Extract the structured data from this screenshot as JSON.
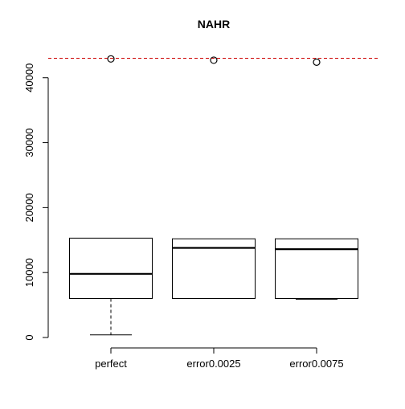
{
  "chart_data": {
    "type": "boxplot",
    "title": "NAHR",
    "xlabel": "",
    "ylabel": "",
    "categories": [
      "perfect",
      "error0.0025",
      "error0.0075"
    ],
    "boxes": [
      {
        "category": "perfect",
        "whisker_low": 400,
        "q1": 6000,
        "median": 9800,
        "q3": 15300,
        "whisker_high": 15300,
        "outliers": [
          42900
        ]
      },
      {
        "category": "error0.0025",
        "whisker_low": 6000,
        "q1": 6000,
        "median": 13800,
        "q3": 15200,
        "whisker_high": 15200,
        "outliers": [
          42700
        ]
      },
      {
        "category": "error0.0075",
        "whisker_low": 5900,
        "q1": 6000,
        "median": 13600,
        "q3": 15200,
        "whisker_high": 15200,
        "outliers": [
          42400
        ]
      }
    ],
    "reference_line": {
      "y": 43000,
      "color": "#cc0000",
      "style": "dashed"
    },
    "y_ticks": [
      0,
      10000,
      20000,
      30000,
      40000
    ],
    "y_tick_labels": [
      "0",
      "10000",
      "20000",
      "30000",
      "40000"
    ],
    "ylim": [
      -400,
      44600
    ],
    "grid": false,
    "legend": "none"
  }
}
